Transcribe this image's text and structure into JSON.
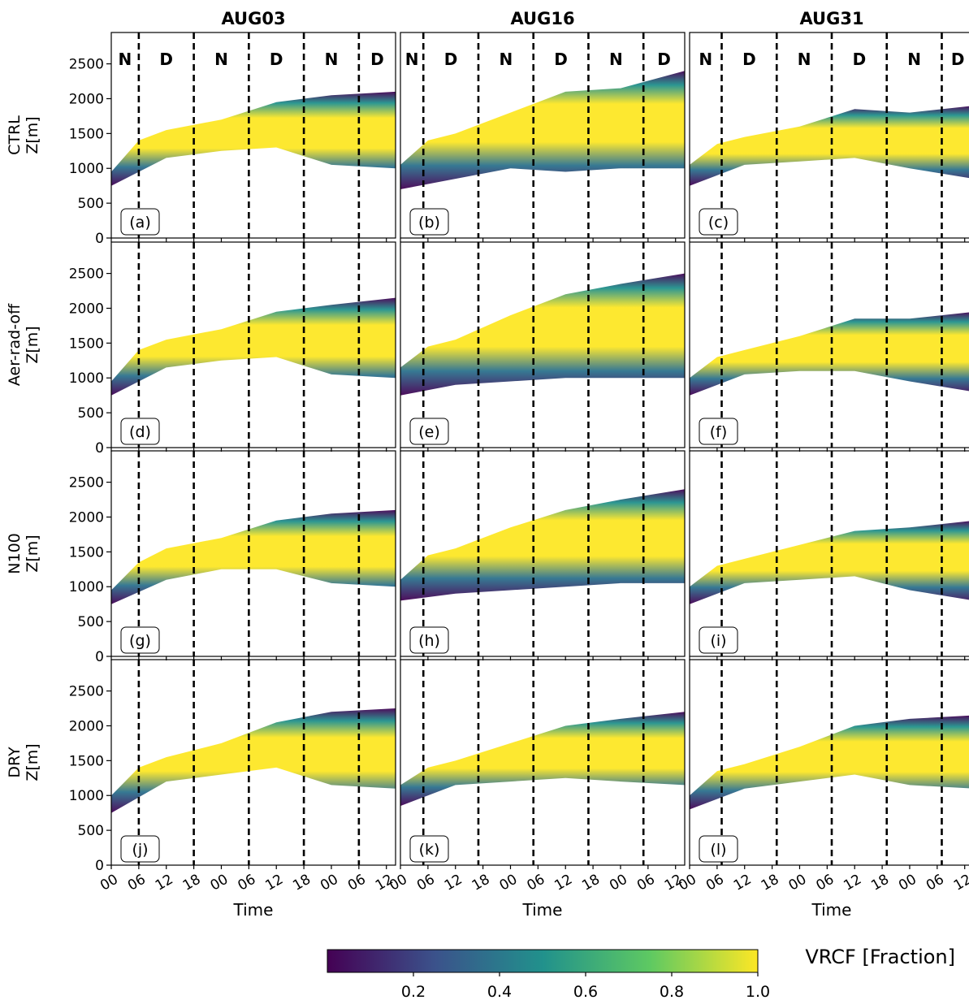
{
  "chart_data": {
    "type": "heatmap",
    "columns": [
      "AUG03",
      "AUG16",
      "AUG31"
    ],
    "rows": [
      "CTRL",
      "Aer-rad-off",
      "N100",
      "DRY"
    ],
    "ylabel": "Z[m]",
    "xlabel": "Time",
    "ylim": [
      0,
      2950
    ],
    "yticks": [
      0,
      500,
      1000,
      1500,
      2000,
      2500
    ],
    "xlim_hours": [
      0,
      62
    ],
    "xtick_hours": [
      0,
      6,
      12,
      18,
      24,
      30,
      36,
      42,
      48,
      54,
      60
    ],
    "xtick_labels": [
      "00",
      "06",
      "12",
      "18",
      "00",
      "06",
      "12",
      "18",
      "00",
      "06",
      "12"
    ],
    "day_night_boundaries_hours": [
      [
        6,
        18,
        30,
        42,
        54
      ],
      [
        5,
        17,
        29,
        41,
        53
      ],
      [
        7,
        19,
        31,
        43,
        55
      ]
    ],
    "period_labels": [
      {
        "text": "N",
        "color": "#ff0000"
      },
      {
        "text": "D",
        "color": "#000000"
      },
      {
        "text": "N",
        "color": "#ff0000"
      },
      {
        "text": "D",
        "color": "#000000"
      },
      {
        "text": "N",
        "color": "#ff0000"
      },
      {
        "text": "D",
        "color": "#000000"
      }
    ],
    "panel_labels": [
      "(a)",
      "(b)",
      "(c)",
      "(d)",
      "(e)",
      "(f)",
      "(g)",
      "(h)",
      "(i)",
      "(j)",
      "(k)",
      "(l)"
    ],
    "colorbar": {
      "label": "VRCF [Fraction]",
      "range": [
        0,
        1.0
      ],
      "ticks": [
        0.2,
        0.4,
        0.6,
        0.8,
        1.0
      ],
      "tick_labels": [
        "0.2",
        "0.4",
        "0.6",
        "0.8",
        "1.0"
      ],
      "colormap": "viridis",
      "colors": [
        "#440154",
        "#3b528b",
        "#21918c",
        "#5ec962",
        "#fde725"
      ]
    },
    "cloud_layer_estimates": [
      {
        "panel": "(a)",
        "base_m": [
          [
            0,
            750
          ],
          [
            12,
            1150
          ],
          [
            24,
            1250
          ],
          [
            36,
            1300
          ],
          [
            48,
            1050
          ],
          [
            62,
            1000
          ]
        ],
        "top_m": [
          [
            0,
            950
          ],
          [
            6,
            1400
          ],
          [
            12,
            1550
          ],
          [
            24,
            1700
          ],
          [
            36,
            1950
          ],
          [
            48,
            2050
          ],
          [
            62,
            2100
          ]
        ]
      },
      {
        "panel": "(b)",
        "base_m": [
          [
            0,
            700
          ],
          [
            12,
            850
          ],
          [
            24,
            1000
          ],
          [
            36,
            950
          ],
          [
            48,
            1000
          ],
          [
            62,
            1000
          ]
        ],
        "top_m": [
          [
            0,
            1050
          ],
          [
            6,
            1400
          ],
          [
            12,
            1500
          ],
          [
            24,
            1800
          ],
          [
            36,
            2100
          ],
          [
            48,
            2150
          ],
          [
            62,
            2400
          ]
        ]
      },
      {
        "panel": "(c)",
        "base_m": [
          [
            0,
            750
          ],
          [
            12,
            1050
          ],
          [
            24,
            1100
          ],
          [
            36,
            1150
          ],
          [
            48,
            1000
          ],
          [
            62,
            850
          ]
        ],
        "top_m": [
          [
            0,
            1050
          ],
          [
            6,
            1350
          ],
          [
            12,
            1450
          ],
          [
            24,
            1600
          ],
          [
            36,
            1850
          ],
          [
            48,
            1800
          ],
          [
            62,
            1900
          ]
        ]
      },
      {
        "panel": "(d)",
        "base_m": [
          [
            0,
            750
          ],
          [
            12,
            1150
          ],
          [
            24,
            1250
          ],
          [
            36,
            1300
          ],
          [
            48,
            1050
          ],
          [
            62,
            1000
          ]
        ],
        "top_m": [
          [
            0,
            950
          ],
          [
            6,
            1400
          ],
          [
            12,
            1550
          ],
          [
            24,
            1700
          ],
          [
            36,
            1950
          ],
          [
            48,
            2050
          ],
          [
            62,
            2150
          ]
        ]
      },
      {
        "panel": "(e)",
        "base_m": [
          [
            0,
            750
          ],
          [
            12,
            900
          ],
          [
            24,
            950
          ],
          [
            36,
            1000
          ],
          [
            48,
            1000
          ],
          [
            62,
            1000
          ]
        ],
        "top_m": [
          [
            0,
            1150
          ],
          [
            6,
            1450
          ],
          [
            12,
            1550
          ],
          [
            24,
            1900
          ],
          [
            36,
            2200
          ],
          [
            48,
            2350
          ],
          [
            62,
            2500
          ]
        ]
      },
      {
        "panel": "(f)",
        "base_m": [
          [
            0,
            750
          ],
          [
            12,
            1050
          ],
          [
            24,
            1100
          ],
          [
            36,
            1100
          ],
          [
            48,
            950
          ],
          [
            62,
            800
          ]
        ],
        "top_m": [
          [
            0,
            1000
          ],
          [
            6,
            1300
          ],
          [
            12,
            1400
          ],
          [
            24,
            1600
          ],
          [
            36,
            1850
          ],
          [
            48,
            1850
          ],
          [
            62,
            1950
          ]
        ]
      },
      {
        "panel": "(g)",
        "base_m": [
          [
            0,
            750
          ],
          [
            12,
            1100
          ],
          [
            24,
            1250
          ],
          [
            36,
            1250
          ],
          [
            48,
            1050
          ],
          [
            62,
            1000
          ]
        ],
        "top_m": [
          [
            0,
            950
          ],
          [
            6,
            1350
          ],
          [
            12,
            1550
          ],
          [
            24,
            1700
          ],
          [
            36,
            1950
          ],
          [
            48,
            2050
          ],
          [
            62,
            2100
          ]
        ]
      },
      {
        "panel": "(h)",
        "base_m": [
          [
            0,
            800
          ],
          [
            12,
            900
          ],
          [
            24,
            950
          ],
          [
            36,
            1000
          ],
          [
            48,
            1050
          ],
          [
            62,
            1050
          ]
        ],
        "top_m": [
          [
            0,
            1100
          ],
          [
            6,
            1450
          ],
          [
            12,
            1550
          ],
          [
            24,
            1850
          ],
          [
            36,
            2100
          ],
          [
            48,
            2250
          ],
          [
            62,
            2400
          ]
        ]
      },
      {
        "panel": "(i)",
        "base_m": [
          [
            0,
            750
          ],
          [
            12,
            1050
          ],
          [
            24,
            1100
          ],
          [
            36,
            1150
          ],
          [
            48,
            950
          ],
          [
            62,
            800
          ]
        ],
        "top_m": [
          [
            0,
            1000
          ],
          [
            6,
            1300
          ],
          [
            12,
            1400
          ],
          [
            24,
            1600
          ],
          [
            36,
            1800
          ],
          [
            48,
            1850
          ],
          [
            62,
            1950
          ]
        ]
      },
      {
        "panel": "(j)",
        "base_m": [
          [
            0,
            750
          ],
          [
            12,
            1200
          ],
          [
            24,
            1300
          ],
          [
            36,
            1400
          ],
          [
            48,
            1150
          ],
          [
            62,
            1100
          ]
        ],
        "top_m": [
          [
            0,
            1000
          ],
          [
            6,
            1400
          ],
          [
            12,
            1550
          ],
          [
            24,
            1750
          ],
          [
            36,
            2050
          ],
          [
            48,
            2200
          ],
          [
            62,
            2250
          ]
        ]
      },
      {
        "panel": "(k)",
        "base_m": [
          [
            0,
            850
          ],
          [
            12,
            1150
          ],
          [
            24,
            1200
          ],
          [
            36,
            1250
          ],
          [
            48,
            1200
          ],
          [
            62,
            1150
          ]
        ],
        "top_m": [
          [
            0,
            1150
          ],
          [
            6,
            1400
          ],
          [
            12,
            1500
          ],
          [
            24,
            1750
          ],
          [
            36,
            2000
          ],
          [
            48,
            2100
          ],
          [
            62,
            2200
          ]
        ]
      },
      {
        "panel": "(l)",
        "base_m": [
          [
            0,
            800
          ],
          [
            12,
            1100
          ],
          [
            24,
            1200
          ],
          [
            36,
            1300
          ],
          [
            48,
            1150
          ],
          [
            62,
            1100
          ]
        ],
        "top_m": [
          [
            0,
            1000
          ],
          [
            6,
            1350
          ],
          [
            12,
            1450
          ],
          [
            24,
            1700
          ],
          [
            36,
            2000
          ],
          [
            48,
            2100
          ],
          [
            62,
            2150
          ]
        ]
      }
    ]
  }
}
